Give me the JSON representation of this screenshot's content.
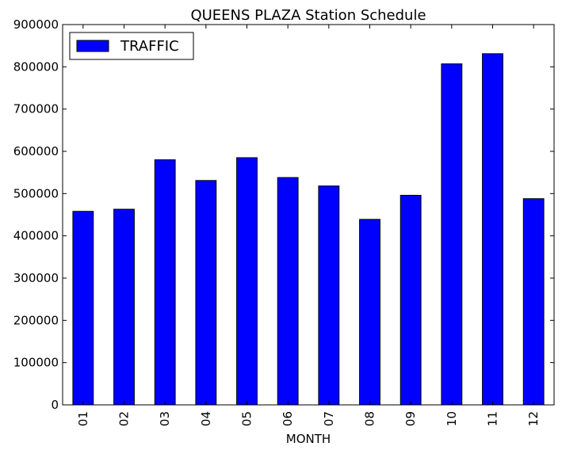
{
  "chart_data": {
    "type": "bar",
    "title": "QUEENS PLAZA Station Schedule",
    "xlabel": "MONTH",
    "ylabel": "",
    "categories": [
      "01",
      "02",
      "03",
      "04",
      "05",
      "06",
      "07",
      "08",
      "09",
      "10",
      "11",
      "12"
    ],
    "series": [
      {
        "name": "TRAFFIC",
        "color": "#0000ff",
        "values": [
          458000,
          463000,
          580000,
          531000,
          585000,
          538000,
          518000,
          439000,
          496000,
          807000,
          831000,
          488000
        ]
      }
    ],
    "ylim": [
      0,
      900000
    ],
    "yticks": [
      "0",
      "100000",
      "200000",
      "300000",
      "400000",
      "500000",
      "600000",
      "700000",
      "800000",
      "900000"
    ],
    "grid": false,
    "legend_position": "top-left"
  }
}
